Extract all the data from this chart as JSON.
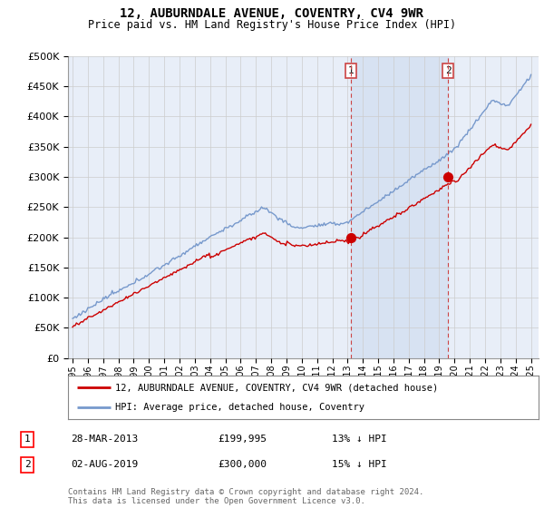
{
  "title": "12, AUBURNDALE AVENUE, COVENTRY, CV4 9WR",
  "subtitle": "Price paid vs. HM Land Registry's House Price Index (HPI)",
  "legend_line1": "12, AUBURNDALE AVENUE, COVENTRY, CV4 9WR (detached house)",
  "legend_line2": "HPI: Average price, detached house, Coventry",
  "footer": "Contains HM Land Registry data © Crown copyright and database right 2024.\nThis data is licensed under the Open Government Licence v3.0.",
  "transactions": [
    {
      "num": 1,
      "date": "28-MAR-2013",
      "price": "£199,995",
      "hpi": "13% ↓ HPI"
    },
    {
      "num": 2,
      "date": "02-AUG-2019",
      "price": "£300,000",
      "hpi": "15% ↓ HPI"
    }
  ],
  "sale1_year": 2013.23,
  "sale1_price": 199995,
  "sale2_year": 2019.58,
  "sale2_price": 300000,
  "ylim": [
    0,
    500000
  ],
  "yticks": [
    0,
    50000,
    100000,
    150000,
    200000,
    250000,
    300000,
    350000,
    400000,
    450000,
    500000
  ],
  "xlim_start": 1994.7,
  "xlim_end": 2025.5,
  "background_color": "#e8eef8",
  "plot_bg": "#e8eef8",
  "shade_color": "#d0ddf0",
  "red_line_color": "#cc0000",
  "blue_line_color": "#7799cc",
  "grid_color": "#cccccc",
  "vline_color": "#cc4444"
}
